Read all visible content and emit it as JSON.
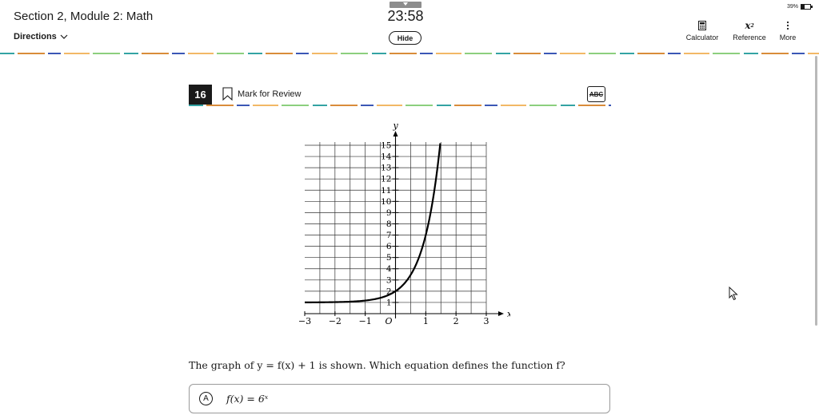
{
  "header": {
    "section_title": "Section 2, Module 2: Math",
    "directions_label": "Directions",
    "timer": "23:58",
    "hide_label": "Hide",
    "battery": "39%",
    "tools": [
      {
        "label": "Calculator",
        "icon": "calculator-icon"
      },
      {
        "label": "Reference",
        "icon": "reference-icon"
      },
      {
        "label": "More",
        "icon": "more-vertical-icon"
      }
    ]
  },
  "question": {
    "number": "16",
    "mark_for_review": "Mark for Review",
    "abc_label": "ABC",
    "prompt": "The graph of y = f(x) + 1 is shown. Which equation defines the function f?",
    "choices": [
      {
        "letter": "A",
        "text": "f(x) = 6ˣ"
      }
    ]
  },
  "graph": {
    "x_axis_label": "x",
    "y_axis_label": "y",
    "origin_label": "O",
    "x_tick_labels": [
      "−3",
      "−2",
      "−1",
      "1",
      "2",
      "3"
    ],
    "y_tick_labels": [
      "1",
      "2",
      "3",
      "4",
      "5",
      "6",
      "7",
      "8",
      "9",
      "10",
      "11",
      "12",
      "13",
      "14",
      "15"
    ]
  },
  "chart_data": {
    "type": "line",
    "title": "",
    "xlabel": "x",
    "ylabel": "y",
    "xlim": [
      -3,
      3
    ],
    "ylim": [
      0,
      15
    ],
    "grid": true,
    "series": [
      {
        "x": [
          -3,
          -2,
          -1,
          -0.5,
          0,
          0.5,
          1,
          1.3,
          1.5
        ],
        "y": [
          1.005,
          1.03,
          1.17,
          1.41,
          2,
          3.45,
          7,
          11.27,
          15.7
        ]
      }
    ]
  }
}
